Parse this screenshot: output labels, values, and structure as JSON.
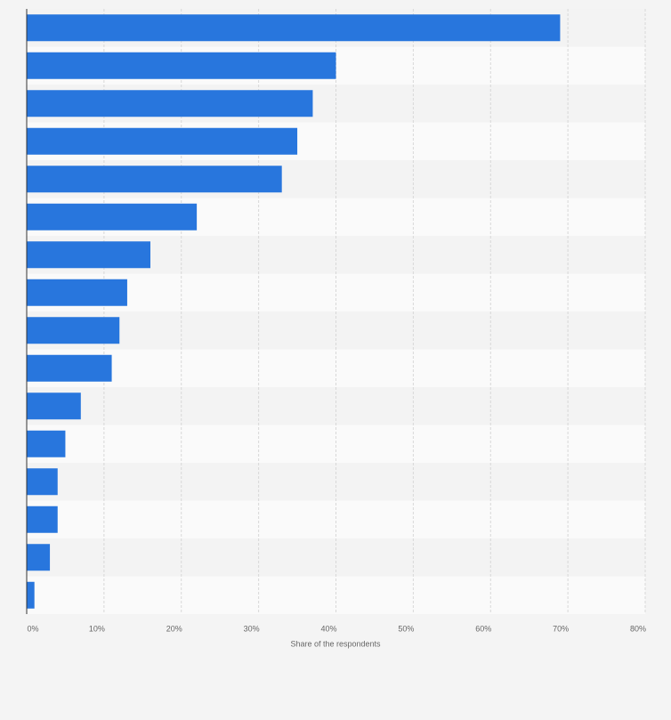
{
  "chart_data": {
    "type": "bar",
    "orientation": "horizontal",
    "categories": [
      null,
      null,
      null,
      null,
      null,
      null,
      null,
      null,
      null,
      null,
      null,
      null,
      null,
      null,
      null,
      null
    ],
    "values": [
      69,
      40,
      37,
      35,
      33,
      22,
      16,
      13,
      12,
      11,
      7,
      5,
      4,
      4,
      3,
      1
    ],
    "color": "#2876dd",
    "xlabel": "Share of the respondents",
    "xlim": [
      0,
      80
    ],
    "xticks": [
      {
        "value": 0,
        "label": "0%"
      },
      {
        "value": 10,
        "label": "10%"
      },
      {
        "value": 20,
        "label": "20%"
      },
      {
        "value": 30,
        "label": "30%"
      },
      {
        "value": 40,
        "label": "40%"
      },
      {
        "value": 50,
        "label": "50%"
      },
      {
        "value": 60,
        "label": "60%"
      },
      {
        "value": 70,
        "label": "70%"
      },
      {
        "value": 80,
        "label": "80%"
      }
    ],
    "grid": true
  }
}
